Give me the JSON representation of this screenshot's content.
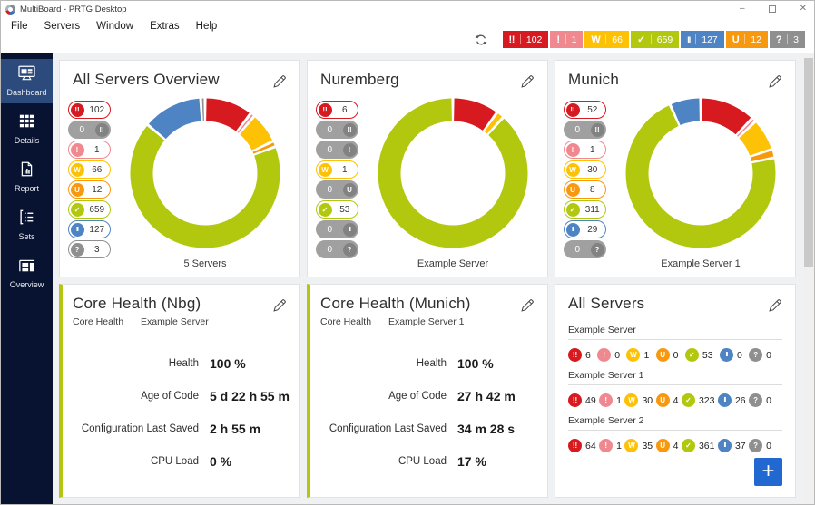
{
  "window": {
    "title": "MultiBoard - PRTG Desktop",
    "controls": [
      "minimize",
      "maximize",
      "close"
    ]
  },
  "menu": {
    "items": [
      "File",
      "Servers",
      "Window",
      "Extras",
      "Help"
    ]
  },
  "colors": {
    "down": "#d71920",
    "down_ack": "#8f8f8f",
    "down_partial": "#f0898f",
    "warning": "#fdc106",
    "unusual": "#f8980f",
    "up": "#b2c80e",
    "paused": "#4e84c4",
    "unknown": "#8f8f8f",
    "accent": "#b4c613",
    "plus_button": "#2268d1",
    "sidebar": "#081231",
    "sidebar_active": "#2c4a7c"
  },
  "status_icons": {
    "down": "!!",
    "down_ack": "!!",
    "down_partial": "!",
    "warning": "W",
    "unusual": "U",
    "up": "✓",
    "paused": "II",
    "unknown": "?"
  },
  "toolbar": {
    "badges": [
      {
        "status": "down",
        "count": "102"
      },
      {
        "status": "down_partial",
        "count": "1"
      },
      {
        "status": "warning",
        "count": "66"
      },
      {
        "status": "up",
        "count": "659"
      },
      {
        "status": "paused",
        "count": "127"
      },
      {
        "status": "unusual",
        "count": "12"
      },
      {
        "status": "unknown",
        "count": "3"
      }
    ]
  },
  "sidebar": {
    "items": [
      {
        "label": "Dashboard",
        "icon": "dashboard-icon",
        "active": true
      },
      {
        "label": "Details",
        "icon": "details-icon",
        "active": false
      },
      {
        "label": "Report",
        "icon": "report-icon",
        "active": false
      },
      {
        "label": "Sets",
        "icon": "sets-icon",
        "active": false
      },
      {
        "label": "Overview",
        "icon": "overview-icon",
        "active": false
      }
    ]
  },
  "cards": {
    "overview": {
      "title": "All Servers Overview",
      "footer": "5 Servers",
      "toggles": [
        {
          "status": "down",
          "count": "102",
          "active": true
        },
        {
          "status": "down_ack",
          "count": "0",
          "active": false
        },
        {
          "status": "down_partial",
          "count": "1",
          "active": true
        },
        {
          "status": "warning",
          "count": "66",
          "active": true
        },
        {
          "status": "unusual",
          "count": "12",
          "active": true
        },
        {
          "status": "up",
          "count": "659",
          "active": true
        },
        {
          "status": "paused",
          "count": "127",
          "active": true
        },
        {
          "status": "unknown",
          "count": "3",
          "active": true
        }
      ],
      "segments": [
        {
          "status": "down",
          "value": 102
        },
        {
          "status": "down_partial",
          "value": 1
        },
        {
          "status": "warning",
          "value": 66
        },
        {
          "status": "unusual",
          "value": 12
        },
        {
          "status": "up",
          "value": 659
        },
        {
          "status": "paused",
          "value": 127
        },
        {
          "status": "unknown",
          "value": 3
        }
      ]
    },
    "nuremberg": {
      "title": "Nuremberg",
      "footer": "Example Server",
      "toggles": [
        {
          "status": "down",
          "count": "6",
          "active": true
        },
        {
          "status": "down_ack",
          "count": "0",
          "active": false
        },
        {
          "status": "down_partial",
          "count": "0",
          "active": false
        },
        {
          "status": "warning",
          "count": "1",
          "active": true
        },
        {
          "status": "unusual",
          "count": "0",
          "active": false
        },
        {
          "status": "up",
          "count": "53",
          "active": true
        },
        {
          "status": "paused",
          "count": "0",
          "active": false
        },
        {
          "status": "unknown",
          "count": "0",
          "active": false
        }
      ],
      "segments": [
        {
          "status": "down",
          "value": 6
        },
        {
          "status": "warning",
          "value": 1
        },
        {
          "status": "up",
          "value": 53
        }
      ]
    },
    "munich": {
      "title": "Munich",
      "footer": "Example Server 1",
      "toggles": [
        {
          "status": "down",
          "count": "52",
          "active": true
        },
        {
          "status": "down_ack",
          "count": "0",
          "active": false
        },
        {
          "status": "down_partial",
          "count": "1",
          "active": true
        },
        {
          "status": "warning",
          "count": "30",
          "active": true
        },
        {
          "status": "unusual",
          "count": "8",
          "active": true
        },
        {
          "status": "up",
          "count": "311",
          "active": true
        },
        {
          "status": "paused",
          "count": "29",
          "active": true
        },
        {
          "status": "unknown",
          "count": "0",
          "active": false
        }
      ],
      "segments": [
        {
          "status": "down",
          "value": 52
        },
        {
          "status": "down_partial",
          "value": 1
        },
        {
          "status": "warning",
          "value": 30
        },
        {
          "status": "unusual",
          "value": 8
        },
        {
          "status": "up",
          "value": 311
        },
        {
          "status": "paused",
          "value": 29
        }
      ]
    },
    "core_nbg": {
      "title": "Core Health (Nbg)",
      "type_label": "Core Health",
      "device": "Example Server",
      "rows": [
        {
          "label": "Health",
          "value": "100 %"
        },
        {
          "label": "Age of Code",
          "value": "5 d 22 h 55 m"
        },
        {
          "label": "Configuration Last Saved",
          "value": "2 h 55 m"
        },
        {
          "label": "CPU Load",
          "value": "0 %"
        }
      ]
    },
    "core_munich": {
      "title": "Core Health (Munich)",
      "type_label": "Core Health",
      "device": "Example Server 1",
      "rows": [
        {
          "label": "Health",
          "value": "100 %"
        },
        {
          "label": "Age of Code",
          "value": "27 h 42 m"
        },
        {
          "label": "Configuration Last Saved",
          "value": "34 m 28 s"
        },
        {
          "label": "CPU Load",
          "value": "17 %"
        }
      ]
    },
    "all_servers": {
      "title": "All Servers",
      "groups": [
        {
          "name": "Example Server",
          "badges": [
            {
              "status": "down",
              "count": "6"
            },
            {
              "status": "down_partial",
              "count": "0"
            },
            {
              "status": "warning",
              "count": "1"
            },
            {
              "status": "unusual",
              "count": "0"
            },
            {
              "status": "up",
              "count": "53"
            },
            {
              "status": "paused",
              "count": "0"
            },
            {
              "status": "unknown",
              "count": "0"
            }
          ]
        },
        {
          "name": "Example Server 1",
          "badges": [
            {
              "status": "down",
              "count": "49"
            },
            {
              "status": "down_partial",
              "count": "1"
            },
            {
              "status": "warning",
              "count": "30"
            },
            {
              "status": "unusual",
              "count": "4"
            },
            {
              "status": "up",
              "count": "323"
            },
            {
              "status": "paused",
              "count": "26"
            },
            {
              "status": "unknown",
              "count": "0"
            }
          ]
        },
        {
          "name": "Example Server 2",
          "badges": [
            {
              "status": "down",
              "count": "64"
            },
            {
              "status": "down_partial",
              "count": "1"
            },
            {
              "status": "warning",
              "count": "35"
            },
            {
              "status": "unusual",
              "count": "4"
            },
            {
              "status": "up",
              "count": "361"
            },
            {
              "status": "paused",
              "count": "37"
            },
            {
              "status": "unknown",
              "count": "0"
            }
          ]
        }
      ]
    }
  },
  "chart_data": [
    {
      "type": "pie",
      "title": "All Servers Overview",
      "label": "5 Servers",
      "categories": [
        "down",
        "down_partial",
        "warning",
        "unusual",
        "up",
        "paused",
        "unknown"
      ],
      "values": [
        102,
        1,
        66,
        12,
        659,
        127,
        3
      ]
    },
    {
      "type": "pie",
      "title": "Nuremberg",
      "label": "Example Server",
      "categories": [
        "down",
        "warning",
        "up"
      ],
      "values": [
        6,
        1,
        53
      ]
    },
    {
      "type": "pie",
      "title": "Munich",
      "label": "Example Server 1",
      "categories": [
        "down",
        "down_partial",
        "warning",
        "unusual",
        "up",
        "paused"
      ],
      "values": [
        52,
        1,
        30,
        8,
        311,
        29
      ]
    }
  ]
}
